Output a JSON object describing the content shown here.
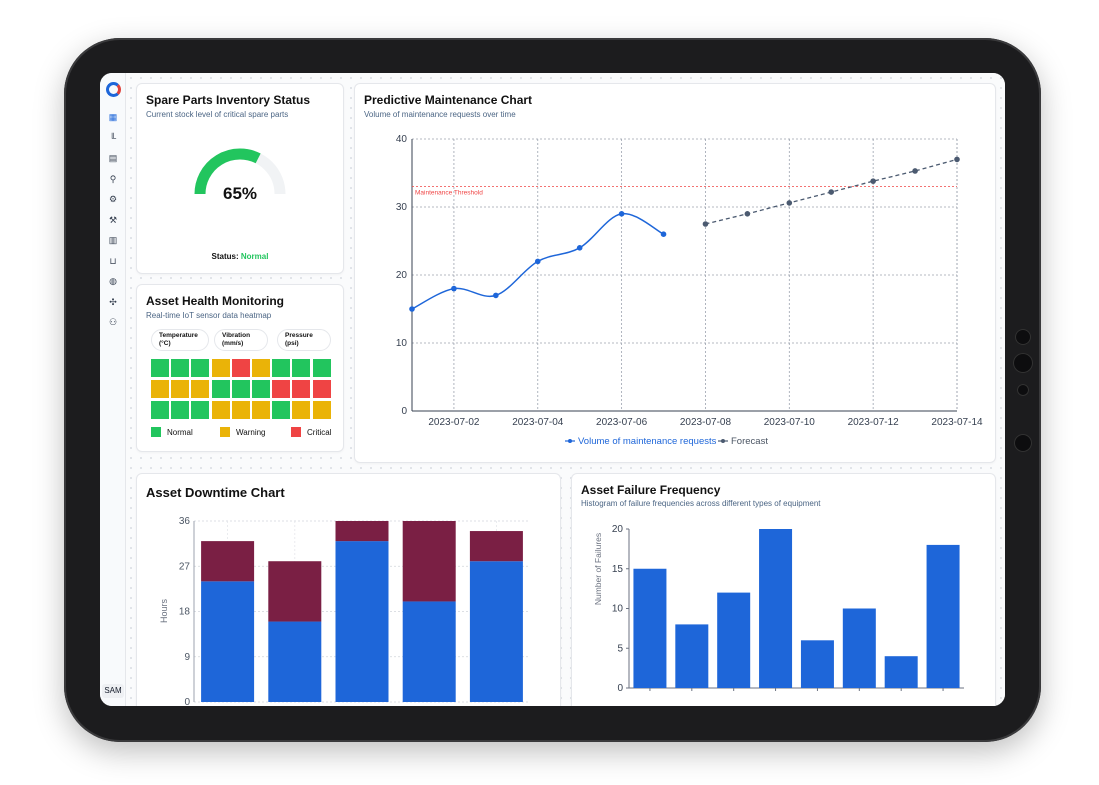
{
  "sidebar": {
    "user_label": "SAM",
    "icons": [
      "dashboard-icon",
      "chart-icon",
      "table-icon",
      "forklift-icon",
      "conveyor-icon",
      "wrench-user-icon",
      "warehouse-icon",
      "basket-icon",
      "globe-icon",
      "gears-icon",
      "user-settings-icon"
    ]
  },
  "inventory": {
    "title": "Spare Parts Inventory Status",
    "subtitle": "Current stock level of critical spare parts",
    "value_label": "65%",
    "level": 0.65,
    "status_label": "Status:",
    "status_value": "Normal",
    "colors": {
      "fill": "#22c55e",
      "track": "#f1f3f5"
    }
  },
  "health": {
    "title": "Asset Health Monitoring",
    "subtitle": "Real-time IoT sensor data heatmap",
    "sensors": [
      {
        "line1": "Temperature",
        "line2": "(°C)"
      },
      {
        "line1": "Vibration",
        "line2": "(mm/s)"
      },
      {
        "line1": "Pressure",
        "line2": "(psi)"
      }
    ],
    "grid": [
      [
        "normal",
        "normal",
        "normal",
        "warning",
        "critical",
        "warning",
        "normal",
        "normal",
        "normal"
      ],
      [
        "warning",
        "warning",
        "warning",
        "normal",
        "normal",
        "normal",
        "critical",
        "critical",
        "critical"
      ],
      [
        "normal",
        "normal",
        "normal",
        "warning",
        "warning",
        "warning",
        "normal",
        "warning",
        "warning"
      ]
    ],
    "legend": {
      "normal": "Normal",
      "warning": "Warning",
      "critical": "Critical"
    },
    "colors": {
      "normal": "#22c55e",
      "warning": "#eab308",
      "critical": "#ef4444"
    }
  },
  "predictive": {
    "title": "Predictive Maintenance Chart",
    "subtitle": "Volume of maintenance requests over time"
  },
  "downtime": {
    "title": "Asset Downtime Chart"
  },
  "failure": {
    "title": "Asset Failure Frequency",
    "subtitle": "Histogram of failure frequencies across different types of equipment"
  },
  "chart_data": [
    {
      "id": "predictive",
      "type": "line",
      "series": [
        {
          "name": "Volume of maintenance requests",
          "x": [
            "2023-07-01",
            "2023-07-02",
            "2023-07-03",
            "2023-07-04",
            "2023-07-05",
            "2023-07-06",
            "2023-07-07"
          ],
          "values": [
            15,
            18,
            17,
            22,
            24,
            29,
            26
          ],
          "color": "#1e66d9",
          "style": "solid"
        },
        {
          "name": "Forecast",
          "x": [
            "2023-07-08",
            "2023-07-09",
            "2023-07-10",
            "2023-07-11",
            "2023-07-12",
            "2023-07-13",
            "2023-07-14"
          ],
          "values": [
            27.5,
            29,
            30.6,
            32.2,
            33.8,
            35.3,
            37
          ],
          "color": "#4b5a70",
          "style": "dashed"
        }
      ],
      "x_ticks": [
        "2023-07-02",
        "2023-07-04",
        "2023-07-06",
        "2023-07-08",
        "2023-07-10",
        "2023-07-12",
        "2023-07-14"
      ],
      "xlim": [
        "2023-07-01",
        "2023-07-14"
      ],
      "ylim": [
        0,
        40
      ],
      "y_ticks": [
        0,
        10,
        20,
        30,
        40
      ],
      "threshold": {
        "value": 33,
        "label": "Maintenance Threshold",
        "color": "#ef4444"
      },
      "grid": true,
      "legend": "bottom"
    },
    {
      "id": "downtime",
      "type": "bar",
      "stacked": true,
      "categories": [
        "",
        "",
        "",
        "",
        ""
      ],
      "series": [
        {
          "values": [
            24,
            16,
            32,
            20,
            28
          ],
          "color": "#1e66d9"
        },
        {
          "values": [
            8,
            12,
            4,
            16,
            6
          ],
          "color": "#7a1f44"
        }
      ],
      "ylabel": "Hours",
      "ylim": [
        0,
        36
      ],
      "y_ticks": [
        0,
        9,
        18,
        27,
        36
      ],
      "grid": true
    },
    {
      "id": "failure",
      "type": "bar",
      "categories": [
        "",
        "",
        "",
        "",
        "",
        "",
        "",
        ""
      ],
      "values": [
        15,
        8,
        12,
        20,
        6,
        10,
        4,
        18
      ],
      "color": "#1e66d9",
      "ylabel": "Number of Failures",
      "ylim": [
        0,
        20
      ],
      "y_ticks": [
        0,
        5,
        10,
        15,
        20
      ]
    }
  ]
}
